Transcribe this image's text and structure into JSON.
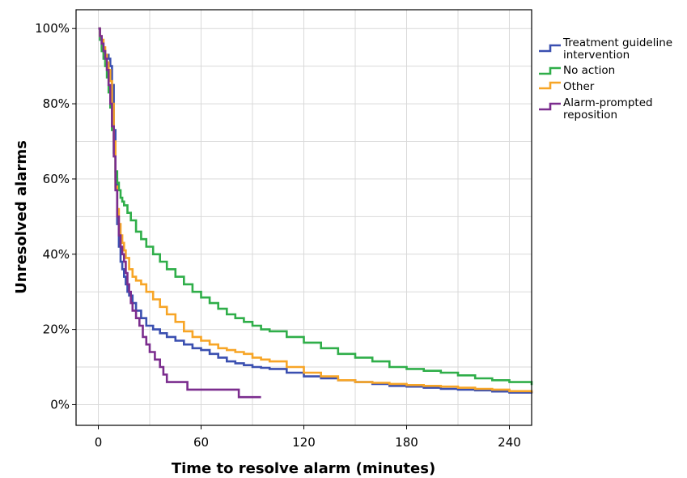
{
  "chart_data": {
    "type": "line",
    "step": true,
    "xlabel": "Time to resolve alarm (minutes)",
    "ylabel": "Unresolved alarms",
    "xlim": [
      -13,
      253
    ],
    "ylim": [
      -5.5,
      105
    ],
    "xticks": [
      0,
      60,
      120,
      180,
      240
    ],
    "yticks": [
      0,
      20,
      40,
      60,
      80,
      100
    ],
    "ytick_labels": [
      "0%",
      "20%",
      "40%",
      "60%",
      "80%",
      "100%"
    ],
    "grid": true,
    "legend_position": "right",
    "series": [
      {
        "name": "Treatment guideline intervention",
        "color": "#3a4fb0",
        "x": [
          0,
          1,
          2,
          3,
          4,
          5,
          6,
          7,
          8,
          9,
          10,
          11,
          12,
          13,
          14,
          15,
          16,
          17,
          18,
          20,
          22,
          25,
          28,
          32,
          36,
          40,
          45,
          50,
          55,
          60,
          65,
          70,
          75,
          80,
          85,
          90,
          95,
          100,
          110,
          120,
          130,
          140,
          150,
          160,
          170,
          180,
          190,
          200,
          210,
          220,
          230,
          240,
          253
        ],
        "y": [
          100,
          97,
          95,
          94,
          93,
          93,
          92,
          90,
          85,
          73,
          60,
          48,
          42,
          38,
          36,
          34,
          32,
          30,
          29,
          27,
          25,
          23,
          21,
          20,
          19,
          18,
          17,
          16,
          15,
          14.5,
          13.5,
          12.5,
          11.5,
          11,
          10.5,
          10,
          9.8,
          9.5,
          8.5,
          7.5,
          7,
          6.5,
          6,
          5.5,
          5,
          4.8,
          4.5,
          4.2,
          4,
          3.8,
          3.5,
          3.2,
          3
        ]
      },
      {
        "name": "No action",
        "color": "#2fae49",
        "x": [
          0,
          1,
          2,
          3,
          4,
          5,
          6,
          7,
          8,
          9,
          10,
          11,
          12,
          13,
          14,
          15,
          17,
          19,
          22,
          25,
          28,
          32,
          36,
          40,
          45,
          50,
          55,
          60,
          65,
          70,
          75,
          80,
          85,
          90,
          95,
          100,
          110,
          120,
          130,
          140,
          150,
          160,
          170,
          180,
          190,
          200,
          210,
          220,
          230,
          240,
          253
        ],
        "y": [
          100,
          97,
          94,
          92,
          90,
          87,
          83,
          79,
          73,
          67,
          62,
          59,
          57,
          55,
          54,
          53,
          51,
          49,
          46,
          44,
          42,
          40,
          38,
          36,
          34,
          32,
          30,
          28.5,
          27,
          25.5,
          24,
          23,
          22,
          21,
          20,
          19.5,
          18,
          16.5,
          15,
          13.5,
          12.5,
          11.5,
          10,
          9.5,
          9,
          8.5,
          7.8,
          7,
          6.5,
          6,
          5.2
        ]
      },
      {
        "name": "Other",
        "color": "#f7a526",
        "x": [
          0,
          1,
          2,
          3,
          4,
          5,
          6,
          7,
          8,
          9,
          10,
          11,
          12,
          13,
          14,
          15,
          16,
          18,
          20,
          22,
          25,
          28,
          32,
          36,
          40,
          45,
          50,
          55,
          60,
          65,
          70,
          75,
          80,
          85,
          90,
          95,
          100,
          110,
          120,
          130,
          140,
          150,
          160,
          170,
          180,
          190,
          200,
          210,
          220,
          230,
          240,
          253
        ],
        "y": [
          100,
          98,
          97,
          95,
          93,
          91,
          89,
          86,
          80,
          70,
          58,
          52,
          48,
          45,
          43,
          41,
          39,
          36,
          34,
          33,
          32,
          30,
          28,
          26,
          24,
          22,
          19.5,
          18,
          17,
          16,
          15,
          14.5,
          14,
          13.5,
          12.5,
          12,
          11.5,
          10,
          8.5,
          7.5,
          6.5,
          6,
          5.8,
          5.5,
          5.2,
          5,
          4.8,
          4.5,
          4.2,
          4,
          3.6,
          3.2
        ]
      },
      {
        "name": "Alarm-prompted reposition",
        "color": "#7b2d8e",
        "x": [
          0,
          1,
          2,
          3,
          4,
          5,
          6,
          7,
          8,
          9,
          10,
          11,
          12,
          13,
          14,
          15,
          16,
          17,
          18,
          19,
          20,
          22,
          24,
          26,
          28,
          30,
          33,
          36,
          38,
          40,
          42,
          50,
          52,
          55,
          60,
          65,
          70,
          75,
          80,
          82,
          95
        ],
        "y": [
          100,
          98,
          96,
          94,
          92,
          89,
          85,
          80,
          74,
          66,
          57,
          50,
          45,
          42,
          40,
          38,
          35,
          32,
          30,
          27,
          25,
          23,
          21,
          18,
          16,
          14,
          12,
          10,
          8,
          6,
          6,
          6,
          4,
          4,
          4,
          4,
          4,
          4,
          4,
          2,
          2
        ]
      }
    ]
  }
}
